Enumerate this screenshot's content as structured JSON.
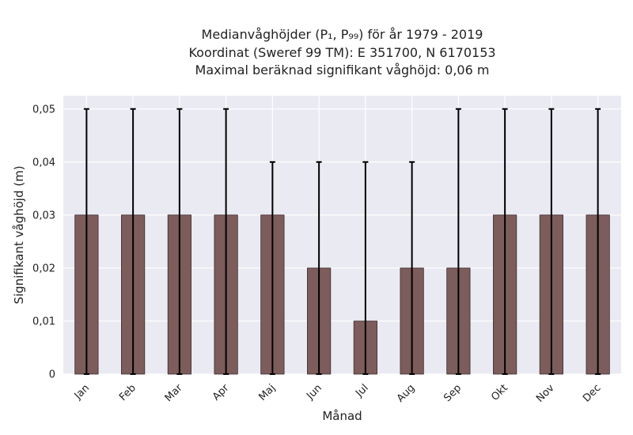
{
  "title": {
    "line1": "Medianvåghöjder (P₁, P₉₉) för år 1979 - 2019",
    "line2": "Koordinat (Sweref 99 TM): E 351700, N 6170153",
    "line3": "Maximal beräknad signifikant våghöjd: 0,06 m"
  },
  "chart_data": {
    "type": "bar",
    "categories": [
      "Jan",
      "Feb",
      "Mar",
      "Apr",
      "Maj",
      "Jun",
      "Jul",
      "Aug",
      "Sep",
      "Okt",
      "Nov",
      "Dec"
    ],
    "values": [
      0.03,
      0.03,
      0.03,
      0.03,
      0.03,
      0.02,
      0.01,
      0.02,
      0.02,
      0.03,
      0.03,
      0.03
    ],
    "error_low": [
      0,
      0,
      0,
      0,
      0,
      0,
      0,
      0,
      0,
      0,
      0,
      0
    ],
    "error_high": [
      0.05,
      0.05,
      0.05,
      0.05,
      0.04,
      0.04,
      0.04,
      0.04,
      0.05,
      0.05,
      0.05,
      0.05
    ],
    "xlabel": "Månad",
    "ylabel": "Signifikant våghöjd (m)",
    "ylim": [
      0,
      0.0525
    ],
    "yticks": [
      0,
      0.01,
      0.02,
      0.03,
      0.04,
      0.05
    ],
    "ytick_labels": [
      "0",
      "0,01",
      "0,02",
      "0,03",
      "0,04",
      "0,05"
    ],
    "grid": true,
    "colors": {
      "bar": "#7d5c5c",
      "bar_edge": "#3a2b2b",
      "errorbar": "#000000",
      "plot_bg": "#eaeaf2",
      "grid": "#ffffff"
    }
  }
}
